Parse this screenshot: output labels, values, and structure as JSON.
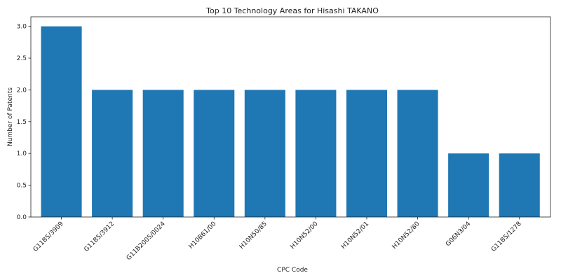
{
  "chart_data": {
    "type": "bar",
    "title": "Top 10 Technology Areas for Hisashi TAKANO",
    "xlabel": "CPC Code",
    "ylabel": "Number of Patents",
    "categories": [
      "G11B5/3909",
      "G11B5/3912",
      "G11B2005/0024",
      "H10B61/00",
      "H10N50/85",
      "H10N52/00",
      "H10N52/01",
      "H10N52/80",
      "G06N3/04",
      "G11B5/1278"
    ],
    "values": [
      3,
      2,
      2,
      2,
      2,
      2,
      2,
      2,
      1,
      1
    ],
    "ylim": [
      0,
      3.15
    ],
    "yticks": [
      "0.0",
      "0.5",
      "1.0",
      "1.5",
      "2.0",
      "2.5",
      "3.0"
    ],
    "grid": false,
    "bar_color": "#1f77b4"
  }
}
